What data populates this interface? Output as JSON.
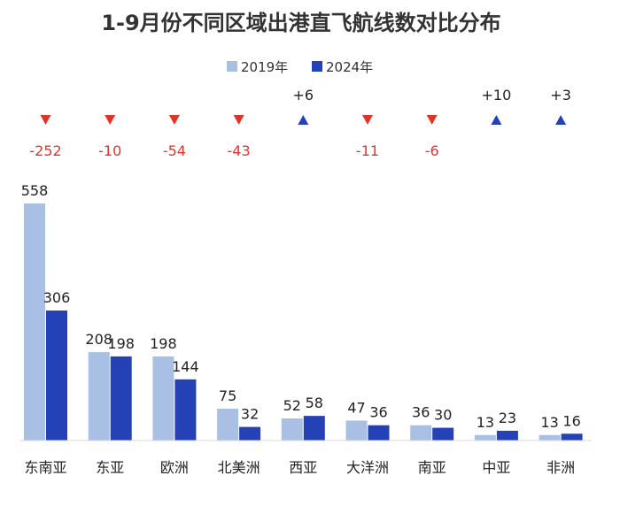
{
  "chart_data": {
    "type": "bar",
    "title": "1-9月份不同区域出港直飞航线数对比分布",
    "categories": [
      "东南亚",
      "东亚",
      "欧洲",
      "北美洲",
      "西亚",
      "大洋洲",
      "南亚",
      "中亚",
      "非洲"
    ],
    "series": [
      {
        "name": "2019年",
        "color": "#a9bfe3",
        "values": [
          558,
          208,
          198,
          75,
          52,
          47,
          36,
          13,
          13
        ]
      },
      {
        "name": "2024年",
        "color": "#2441b5",
        "values": [
          306,
          198,
          144,
          32,
          58,
          36,
          30,
          23,
          16
        ]
      }
    ],
    "changes": [
      {
        "label": "-252",
        "direction": "down"
      },
      {
        "label": "-10",
        "direction": "down"
      },
      {
        "label": "-54",
        "direction": "down"
      },
      {
        "label": "-43",
        "direction": "down"
      },
      {
        "label": "+6",
        "direction": "up"
      },
      {
        "label": "-11",
        "direction": "down"
      },
      {
        "label": "-6",
        "direction": "down"
      },
      {
        "label": "+10",
        "direction": "up"
      },
      {
        "label": "+3",
        "direction": "up"
      }
    ],
    "down_color": "#e0342b",
    "up_color": "#2441b5",
    "xlabel": "",
    "ylabel": "",
    "ylim": [
      0,
      558
    ],
    "grid": false,
    "legend": "top-center"
  }
}
